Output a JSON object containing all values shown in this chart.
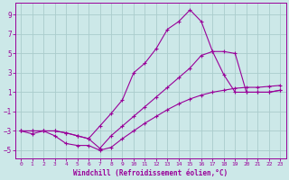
{
  "xlabel": "Windchill (Refroidissement éolien,°C)",
  "xlim": [
    -0.5,
    23.5
  ],
  "ylim": [
    -5.8,
    10.2
  ],
  "yticks": [
    -5,
    -3,
    -1,
    1,
    3,
    5,
    7,
    9
  ],
  "xticks": [
    0,
    1,
    2,
    3,
    4,
    5,
    6,
    7,
    8,
    9,
    10,
    11,
    12,
    13,
    14,
    15,
    16,
    17,
    18,
    19,
    20,
    21,
    22,
    23
  ],
  "background_color": "#cce8e8",
  "grid_color": "#aacccc",
  "line_color": "#990099",
  "line1_x": [
    0,
    1,
    2,
    3,
    4,
    5,
    6,
    7,
    8,
    9,
    10,
    11,
    12,
    13,
    14,
    15,
    16,
    17,
    18,
    19,
    20,
    21,
    22,
    23
  ],
  "line1_y": [
    -3.0,
    -3.3,
    -3.0,
    -3.5,
    -4.3,
    -4.5,
    -4.5,
    -5.0,
    -4.7,
    -3.8,
    -3.0,
    -2.2,
    -1.5,
    -0.8,
    -0.2,
    0.3,
    0.7,
    1.0,
    1.2,
    1.4,
    1.5,
    1.5,
    1.6,
    1.7
  ],
  "line2_x": [
    0,
    1,
    2,
    3,
    4,
    5,
    6,
    7,
    8,
    9,
    10,
    11,
    12,
    13,
    14,
    15,
    16,
    17,
    18,
    19,
    20,
    21,
    22,
    23
  ],
  "line2_y": [
    -3.0,
    -3.0,
    -3.0,
    -3.0,
    -3.2,
    -3.5,
    -3.8,
    -2.5,
    -1.2,
    0.2,
    3.0,
    4.0,
    5.5,
    7.5,
    8.3,
    9.5,
    8.3,
    5.2,
    2.8,
    1.0,
    1.0,
    1.0,
    1.0,
    1.2
  ],
  "line3_x": [
    0,
    1,
    2,
    3,
    4,
    5,
    6,
    7,
    8,
    9,
    10,
    11,
    12,
    13,
    14,
    15,
    16,
    17,
    18,
    19,
    20,
    21,
    22,
    23
  ],
  "line3_y": [
    -3.0,
    -3.0,
    -3.0,
    -3.0,
    -3.2,
    -3.5,
    -3.8,
    -4.8,
    -3.5,
    -2.5,
    -1.5,
    -0.5,
    0.5,
    1.5,
    2.5,
    3.5,
    4.8,
    5.2,
    5.2,
    5.0,
    1.0,
    1.0,
    1.0,
    1.2
  ]
}
